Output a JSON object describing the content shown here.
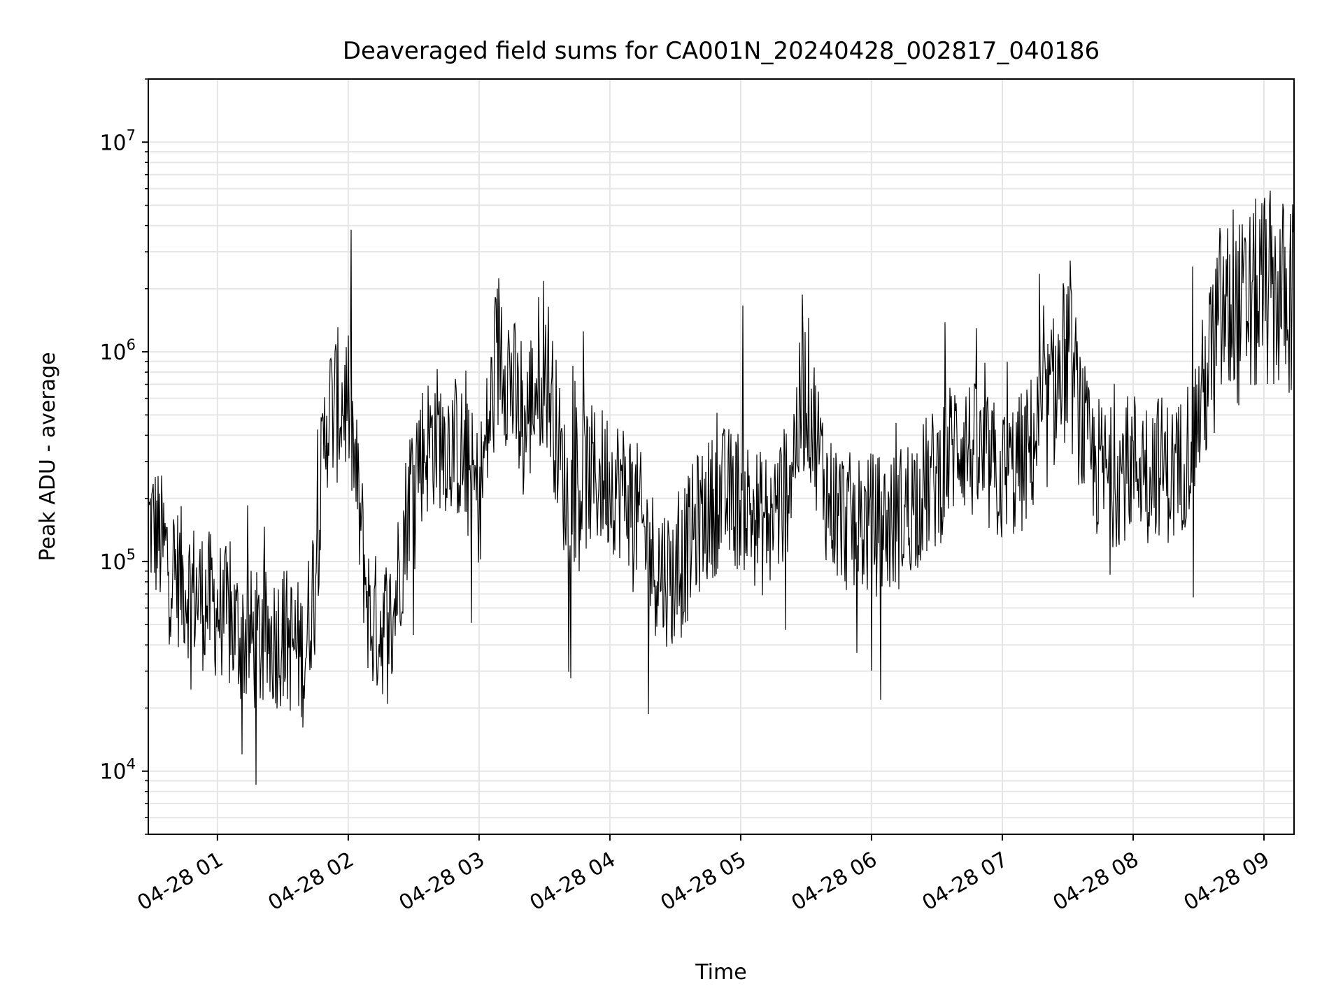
{
  "chart_data": {
    "type": "line",
    "title": "Deaveraged field sums for CA001N_20240428_002817_040186",
    "xlabel": "Time",
    "ylabel": "Peak ADU - average",
    "yscale": "log",
    "ylim": [
      5000,
      20000000
    ],
    "xlim": [
      "2024-04-28 00:28:17",
      "2024-04-28 09:13:48"
    ],
    "grid": true,
    "line_color": "#000000",
    "grid_color": "#e6e6e6",
    "x_ticks": [
      {
        "time": "2024-04-28 01:00",
        "label": "04-28 01"
      },
      {
        "time": "2024-04-28 02:00",
        "label": "04-28 02"
      },
      {
        "time": "2024-04-28 03:00",
        "label": "04-28 03"
      },
      {
        "time": "2024-04-28 04:00",
        "label": "04-28 04"
      },
      {
        "time": "2024-04-28 05:00",
        "label": "04-28 05"
      },
      {
        "time": "2024-04-28 06:00",
        "label": "04-28 06"
      },
      {
        "time": "2024-04-28 07:00",
        "label": "04-28 07"
      },
      {
        "time": "2024-04-28 08:00",
        "label": "04-28 08"
      },
      {
        "time": "2024-04-28 09:00",
        "label": "04-28 09"
      }
    ],
    "y_ticks": [
      {
        "value": 10000,
        "base": "10",
        "exp": "4"
      },
      {
        "value": 100000,
        "base": "10",
        "exp": "5"
      },
      {
        "value": 1000000,
        "base": "10",
        "exp": "6"
      },
      {
        "value": 10000000,
        "base": "10",
        "exp": "7"
      }
    ],
    "series": [
      {
        "x": [
          "2024-04-28 00:30",
          "2024-04-28 00:40",
          "2024-04-28 00:50",
          "2024-04-28 01:00",
          "2024-04-28 01:10",
          "2024-04-28 01:20",
          "2024-04-28 01:30",
          "2024-04-28 01:40",
          "2024-04-28 01:45",
          "2024-04-28 01:50",
          "2024-04-28 02:00",
          "2024-04-28 02:10",
          "2024-04-28 02:20",
          "2024-04-28 02:30",
          "2024-04-28 02:40",
          "2024-04-28 02:50",
          "2024-04-28 03:00",
          "2024-04-28 03:10",
          "2024-04-28 03:20",
          "2024-04-28 03:30",
          "2024-04-28 03:40",
          "2024-04-28 03:50",
          "2024-04-28 04:00",
          "2024-04-28 04:10",
          "2024-04-28 04:20",
          "2024-04-28 04:30",
          "2024-04-28 04:40",
          "2024-04-28 04:50",
          "2024-04-28 05:00",
          "2024-04-28 05:10",
          "2024-04-28 05:20",
          "2024-04-28 05:30",
          "2024-04-28 05:40",
          "2024-04-28 05:50",
          "2024-04-28 06:00",
          "2024-04-28 06:10",
          "2024-04-28 06:20",
          "2024-04-28 06:30",
          "2024-04-28 06:40",
          "2024-04-28 06:50",
          "2024-04-28 07:00",
          "2024-04-28 07:10",
          "2024-04-28 07:20",
          "2024-04-28 07:30",
          "2024-04-28 07:40",
          "2024-04-28 07:50",
          "2024-04-28 08:00",
          "2024-04-28 08:10",
          "2024-04-28 08:20",
          "2024-04-28 08:30",
          "2024-04-28 08:40",
          "2024-04-28 08:50",
          "2024-04-28 09:00",
          "2024-04-28 09:10"
        ],
        "y": [
          150000,
          90000,
          70000,
          60000,
          45000,
          40000,
          45000,
          35000,
          100000,
          500000,
          600000,
          50000,
          50000,
          300000,
          400000,
          350000,
          200000,
          1200000,
          400000,
          1000000,
          200000,
          250000,
          250000,
          200000,
          100000,
          80000,
          150000,
          200000,
          200000,
          150000,
          200000,
          700000,
          200000,
          150000,
          150000,
          150000,
          200000,
          250000,
          400000,
          300000,
          250000,
          300000,
          500000,
          1000000,
          300000,
          250000,
          300000,
          300000,
          250000,
          500000,
          1500000,
          1500000,
          2000000,
          1800000
        ]
      }
    ]
  }
}
